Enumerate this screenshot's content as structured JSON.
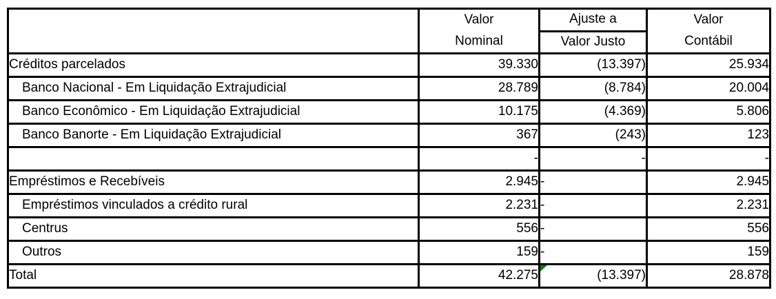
{
  "header": {
    "corner": "",
    "nominal": {
      "line1": "Valor",
      "line2": "Nominal"
    },
    "ajuste": {
      "line1": "Ajuste a",
      "line2": "Valor Justo"
    },
    "contabil": {
      "line1": "Valor",
      "line2": "Contábil"
    }
  },
  "rows": [
    {
      "label": "Créditos parcelados",
      "nominal": "39.330",
      "ajuste": "(13.397)",
      "contabil": "25.934"
    },
    {
      "label": "Banco Nacional - Em Liquidação Extrajudicial",
      "nominal": "28.789",
      "ajuste": "(8.784)",
      "contabil": "20.004"
    },
    {
      "label": "Banco Econômico - Em Liquidação Extrajudicial",
      "nominal": "10.175",
      "ajuste": "(4.369)",
      "contabil": "5.806"
    },
    {
      "label": "Banco Banorte - Em Liquidação Extrajudicial",
      "nominal": "367",
      "ajuste": "(243)",
      "contabil": "123"
    },
    {
      "label": "",
      "nominal": "-",
      "ajuste": "-",
      "contabil": "-"
    },
    {
      "label": "Empréstimos e Recebíveis",
      "nominal": "2.945",
      "ajuste": "-",
      "contabil": "2.945"
    },
    {
      "label": "Empréstimos vinculados a crédito rural",
      "nominal": "2.231",
      "ajuste": "-",
      "contabil": "2.231"
    },
    {
      "label": "Centrus",
      "nominal": "556",
      "ajuste": "-",
      "contabil": "556"
    },
    {
      "label": "Outros",
      "nominal": "159",
      "ajuste": "-",
      "contabil": "159"
    },
    {
      "label": "Total",
      "nominal": "42.275",
      "ajuste": "(13.397)",
      "contabil": "28.878"
    }
  ],
  "icons": {
    "cell_error_indicator": "excel-error-triangle"
  },
  "colors": {
    "border": "#000000",
    "background": "#ffffff",
    "text": "#000000",
    "error_indicator_green": "#0b7c0b"
  }
}
